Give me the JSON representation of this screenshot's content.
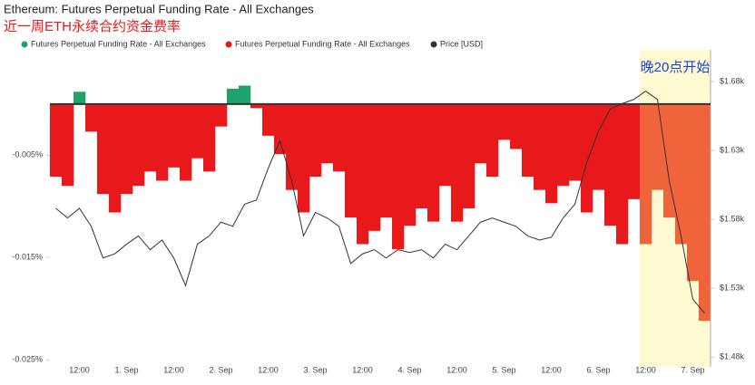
{
  "chart_data": {
    "type": "bar",
    "title": "Ethereum: Futures Perpetual Funding Rate - All Exchanges",
    "subtitle": "近一周ETH永续合约资金费率",
    "annotation": "晚20点开始",
    "categories": [
      null,
      null,
      "12:00",
      null,
      null,
      null,
      "1. Sep",
      null,
      null,
      null,
      "12:00",
      null,
      null,
      null,
      "2. Sep",
      null,
      null,
      null,
      "12:00",
      null,
      null,
      null,
      "3. Sep",
      null,
      null,
      null,
      "12:00",
      null,
      null,
      null,
      "4. Sep",
      null,
      null,
      null,
      "12:00",
      null,
      null,
      null,
      "5. Sep",
      null,
      null,
      null,
      "12:00",
      null,
      null,
      null,
      "6. Sep",
      null,
      null,
      null,
      "12:00",
      null,
      null,
      null,
      "7. Sep",
      null
    ],
    "series": [
      {
        "name": "Futures Perpetual Funding Rate - All Exchanges",
        "color": "#1fa36a",
        "values": [
          null,
          null,
          0.0012,
          null,
          null,
          null,
          null,
          null,
          null,
          null,
          null,
          null,
          null,
          null,
          null,
          0.0015,
          0.0018,
          null,
          null,
          null,
          null,
          null,
          null,
          null,
          null,
          null,
          null,
          null,
          null,
          null,
          null,
          null,
          null,
          null,
          null,
          null,
          null,
          null,
          null,
          null,
          null,
          null,
          null,
          null,
          null,
          null,
          null,
          null,
          null,
          null,
          null,
          null,
          null,
          null,
          null,
          null
        ]
      },
      {
        "name": "Futures Perpetual Funding Rate - All Exchanges",
        "color": "#e8191b",
        "values": [
          -0.0071,
          -0.008,
          null,
          -0.0027,
          -0.0088,
          -0.0106,
          -0.0088,
          -0.008,
          -0.0066,
          -0.0075,
          -0.0062,
          -0.0075,
          -0.0053,
          -0.0066,
          -0.0022,
          null,
          null,
          -0.0004,
          -0.0031,
          -0.0049,
          -0.0084,
          -0.0106,
          -0.0071,
          -0.0058,
          -0.0066,
          -0.0111,
          -0.0137,
          -0.0124,
          -0.0111,
          -0.0142,
          -0.0119,
          -0.0102,
          -0.0115,
          -0.008,
          -0.0115,
          -0.0102,
          -0.0058,
          -0.0071,
          -0.0035,
          -0.0044,
          -0.0071,
          -0.0084,
          -0.0097,
          -0.008,
          -0.0075,
          -0.0106,
          -0.0084,
          -0.0119,
          -0.0137,
          -0.0093,
          -0.0137,
          -0.0084,
          -0.0111,
          -0.0137,
          -0.0173,
          -0.0212
        ]
      },
      {
        "name": "Price [USD]",
        "color": "#333333",
        "axis": "y2",
        "values": [
          1588,
          1581,
          1588,
          1575,
          1552,
          1555,
          1562,
          1568,
          1558,
          1565,
          1552,
          1532,
          1562,
          1568,
          1578,
          1575,
          1591,
          1594,
          1617,
          1637,
          1608,
          1568,
          1585,
          1581,
          1575,
          1548,
          1555,
          1558,
          1552,
          1558,
          1556,
          1558,
          1552,
          1562,
          1558,
          1568,
          1578,
          1581,
          1578,
          1575,
          1568,
          1565,
          1567,
          1581,
          1591,
          1621,
          1644,
          1660,
          1664,
          1667,
          1673,
          1667,
          1608,
          1568,
          1522,
          1512
        ]
      }
    ],
    "ylim": [
      -0.0257,
      0.0053
    ],
    "yticks": [
      {
        "value": -0.005,
        "label": "-0.005%"
      },
      {
        "value": -0.015,
        "label": "-0.015%"
      },
      {
        "value": -0.025,
        "label": "-0.025%"
      }
    ],
    "y2lim": [
      1473,
      1703
    ],
    "y2ticks": [
      {
        "value": 1680,
        "label": "$1.68k"
      },
      {
        "value": 1630,
        "label": "$1.63k"
      },
      {
        "value": 1580,
        "label": "$1.58k"
      },
      {
        "value": 1530,
        "label": "$1.53k"
      },
      {
        "value": 1480,
        "label": "$1.48k"
      }
    ],
    "grid": false
  }
}
